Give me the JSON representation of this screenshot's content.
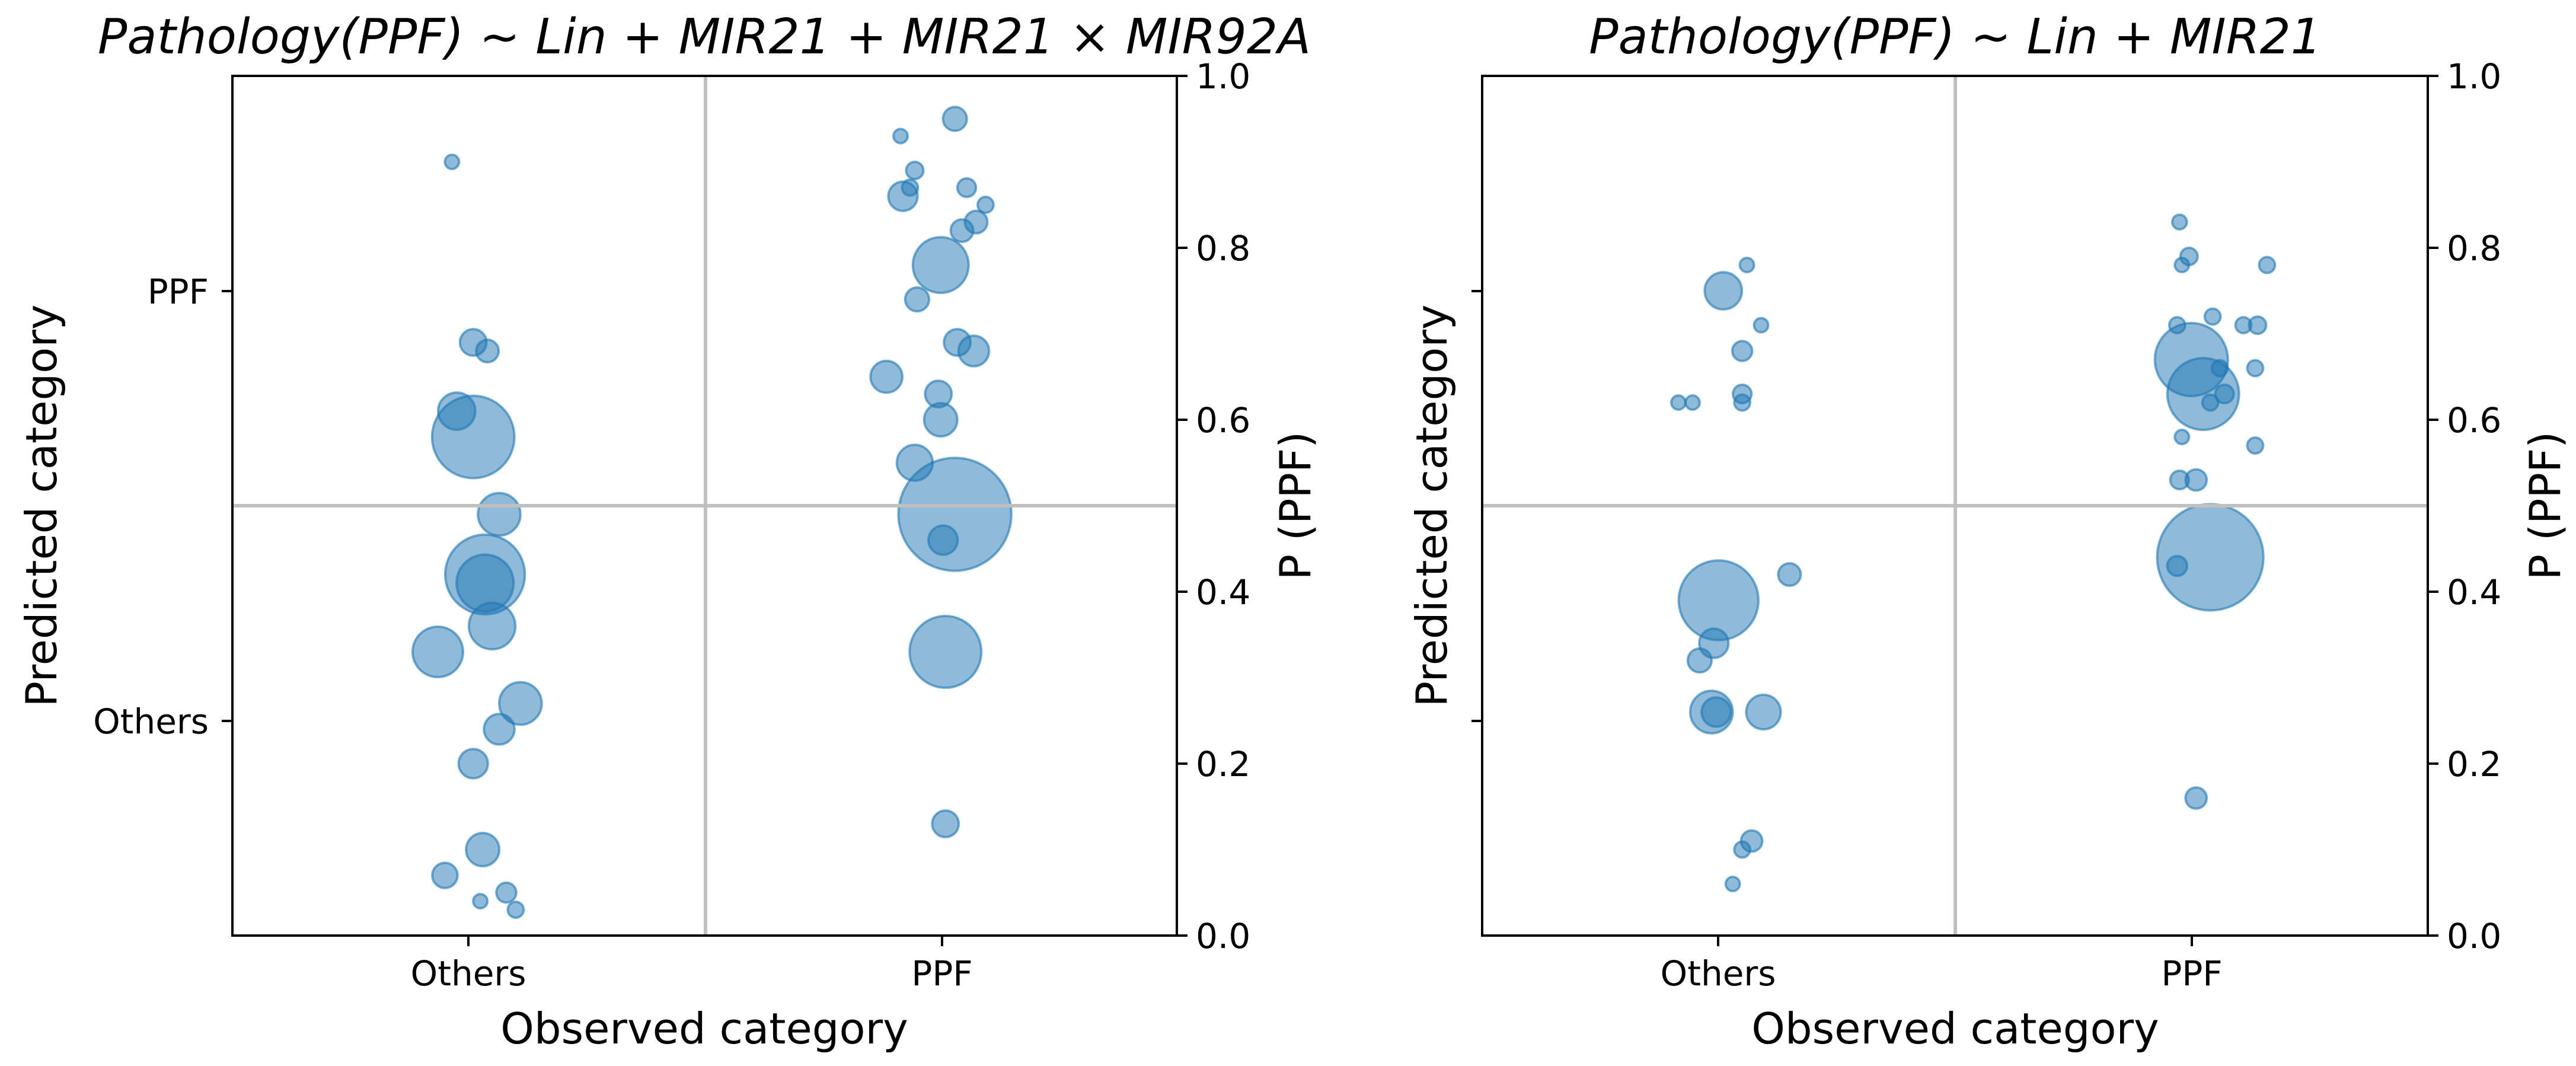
{
  "colors": {
    "bubble_fill": "#1f77b4",
    "bubble_edge": "#1f77b4",
    "reference_line": "#c0c0c0"
  },
  "chart_data": [
    {
      "type": "scatter",
      "title": "Pathology(PPF) ~ Lin + MIR21 + MIR21 × MIR92A",
      "xlabel": "Observed category",
      "ylabel_left": "Predicted category",
      "ylabel_right": "P (PPF)",
      "x_categories": [
        "Others",
        "PPF"
      ],
      "y_categories_left": [
        "Others",
        "PPF"
      ],
      "y_ticks_right": [
        "0.0",
        "0.2",
        "0.4",
        "0.6",
        "0.8",
        "1.0"
      ],
      "ylim": [
        0,
        1
      ],
      "threshold": 0.5,
      "points": [
        {
          "category": "Others",
          "jitter": -0.07,
          "p": 0.9,
          "size": 0.1
        },
        {
          "category": "Others",
          "jitter": 0.02,
          "p": 0.69,
          "size": 0.2
        },
        {
          "category": "Others",
          "jitter": 0.08,
          "p": 0.68,
          "size": 0.17
        },
        {
          "category": "Others",
          "jitter": -0.05,
          "p": 0.61,
          "size": 0.28
        },
        {
          "category": "Others",
          "jitter": 0.02,
          "p": 0.58,
          "size": 0.62
        },
        {
          "category": "Others",
          "jitter": 0.13,
          "p": 0.49,
          "size": 0.32
        },
        {
          "category": "Others",
          "jitter": 0.07,
          "p": 0.42,
          "size": 0.6
        },
        {
          "category": "Others",
          "jitter": 0.07,
          "p": 0.41,
          "size": 0.43
        },
        {
          "category": "Others",
          "jitter": 0.1,
          "p": 0.36,
          "size": 0.35
        },
        {
          "category": "Others",
          "jitter": -0.13,
          "p": 0.33,
          "size": 0.38
        },
        {
          "category": "Others",
          "jitter": 0.22,
          "p": 0.27,
          "size": 0.32
        },
        {
          "category": "Others",
          "jitter": 0.13,
          "p": 0.24,
          "size": 0.23
        },
        {
          "category": "Others",
          "jitter": 0.02,
          "p": 0.2,
          "size": 0.22
        },
        {
          "category": "Others",
          "jitter": 0.06,
          "p": 0.1,
          "size": 0.25
        },
        {
          "category": "Others",
          "jitter": -0.1,
          "p": 0.07,
          "size": 0.19
        },
        {
          "category": "Others",
          "jitter": 0.16,
          "p": 0.05,
          "size": 0.15
        },
        {
          "category": "Others",
          "jitter": 0.05,
          "p": 0.04,
          "size": 0.07
        },
        {
          "category": "Others",
          "jitter": 0.2,
          "p": 0.03,
          "size": 0.12
        },
        {
          "category": "PPF",
          "jitter": 0.06,
          "p": 0.95,
          "size": 0.18
        },
        {
          "category": "PPF",
          "jitter": -0.17,
          "p": 0.93,
          "size": 0.09
        },
        {
          "category": "PPF",
          "jitter": -0.11,
          "p": 0.89,
          "size": 0.13
        },
        {
          "category": "PPF",
          "jitter": -0.13,
          "p": 0.87,
          "size": 0.12
        },
        {
          "category": "PPF",
          "jitter": 0.11,
          "p": 0.87,
          "size": 0.14
        },
        {
          "category": "PPF",
          "jitter": -0.16,
          "p": 0.86,
          "size": 0.22
        },
        {
          "category": "PPF",
          "jitter": 0.19,
          "p": 0.85,
          "size": 0.12
        },
        {
          "category": "PPF",
          "jitter": 0.15,
          "p": 0.83,
          "size": 0.17
        },
        {
          "category": "PPF",
          "jitter": 0.09,
          "p": 0.82,
          "size": 0.17
        },
        {
          "category": "PPF",
          "jitter": 0.0,
          "p": 0.78,
          "size": 0.42
        },
        {
          "category": "PPF",
          "jitter": -0.1,
          "p": 0.74,
          "size": 0.18
        },
        {
          "category": "PPF",
          "jitter": 0.07,
          "p": 0.69,
          "size": 0.2
        },
        {
          "category": "PPF",
          "jitter": 0.14,
          "p": 0.68,
          "size": 0.23
        },
        {
          "category": "PPF",
          "jitter": -0.23,
          "p": 0.65,
          "size": 0.24
        },
        {
          "category": "PPF",
          "jitter": -0.01,
          "p": 0.63,
          "size": 0.2
        },
        {
          "category": "PPF",
          "jitter": 0.0,
          "p": 0.6,
          "size": 0.25
        },
        {
          "category": "PPF",
          "jitter": -0.11,
          "p": 0.55,
          "size": 0.27
        },
        {
          "category": "PPF",
          "jitter": 0.06,
          "p": 0.49,
          "size": 0.85
        },
        {
          "category": "PPF",
          "jitter": 0.01,
          "p": 0.46,
          "size": 0.22
        },
        {
          "category": "PPF",
          "jitter": 0.02,
          "p": 0.33,
          "size": 0.54
        },
        {
          "category": "PPF",
          "jitter": 0.02,
          "p": 0.13,
          "size": 0.2
        }
      ]
    },
    {
      "type": "scatter",
      "title": "Pathology(PPF) ~ Lin + MIR21",
      "xlabel": "Observed category",
      "ylabel_left": "Predicted category",
      "ylabel_right": "P (PPF)",
      "x_categories": [
        "Others",
        "PPF"
      ],
      "y_categories_left": [
        "",
        ""
      ],
      "y_ticks_right": [
        "0.0",
        "0.2",
        "0.4",
        "0.6",
        "0.8",
        "1.0"
      ],
      "ylim": [
        0,
        1
      ],
      "threshold": 0.5,
      "points": [
        {
          "category": "Others",
          "jitter": 0.12,
          "p": 0.78,
          "size": 0.1
        },
        {
          "category": "Others",
          "jitter": 0.02,
          "p": 0.75,
          "size": 0.28
        },
        {
          "category": "Others",
          "jitter": 0.18,
          "p": 0.71,
          "size": 0.1
        },
        {
          "category": "Others",
          "jitter": 0.1,
          "p": 0.68,
          "size": 0.15
        },
        {
          "category": "Others",
          "jitter": 0.1,
          "p": 0.63,
          "size": 0.14
        },
        {
          "category": "Others",
          "jitter": 0.1,
          "p": 0.62,
          "size": 0.12
        },
        {
          "category": "Others",
          "jitter": -0.17,
          "p": 0.62,
          "size": 0.1
        },
        {
          "category": "Others",
          "jitter": -0.11,
          "p": 0.62,
          "size": 0.1
        },
        {
          "category": "Others",
          "jitter": 0.0,
          "p": 0.39,
          "size": 0.6
        },
        {
          "category": "Others",
          "jitter": 0.3,
          "p": 0.42,
          "size": 0.17
        },
        {
          "category": "Others",
          "jitter": -0.02,
          "p": 0.34,
          "size": 0.22
        },
        {
          "category": "Others",
          "jitter": -0.08,
          "p": 0.32,
          "size": 0.18
        },
        {
          "category": "Others",
          "jitter": -0.03,
          "p": 0.26,
          "size": 0.32
        },
        {
          "category": "Others",
          "jitter": -0.01,
          "p": 0.26,
          "size": 0.22
        },
        {
          "category": "Others",
          "jitter": 0.19,
          "p": 0.26,
          "size": 0.26
        },
        {
          "category": "Others",
          "jitter": 0.14,
          "p": 0.11,
          "size": 0.16
        },
        {
          "category": "Others",
          "jitter": 0.1,
          "p": 0.1,
          "size": 0.12
        },
        {
          "category": "Others",
          "jitter": 0.06,
          "p": 0.06,
          "size": 0.09
        },
        {
          "category": "PPF",
          "jitter": -0.05,
          "p": 0.83,
          "size": 0.11
        },
        {
          "category": "PPF",
          "jitter": -0.01,
          "p": 0.79,
          "size": 0.13
        },
        {
          "category": "PPF",
          "jitter": 0.32,
          "p": 0.78,
          "size": 0.12
        },
        {
          "category": "PPF",
          "jitter": -0.04,
          "p": 0.78,
          "size": 0.1
        },
        {
          "category": "PPF",
          "jitter": 0.09,
          "p": 0.72,
          "size": 0.12
        },
        {
          "category": "PPF",
          "jitter": 0.28,
          "p": 0.71,
          "size": 0.13
        },
        {
          "category": "PPF",
          "jitter": 0.22,
          "p": 0.71,
          "size": 0.12
        },
        {
          "category": "PPF",
          "jitter": -0.06,
          "p": 0.71,
          "size": 0.12
        },
        {
          "category": "PPF",
          "jitter": 0.0,
          "p": 0.67,
          "size": 0.55
        },
        {
          "category": "PPF",
          "jitter": 0.12,
          "p": 0.66,
          "size": 0.12
        },
        {
          "category": "PPF",
          "jitter": 0.27,
          "p": 0.66,
          "size": 0.12
        },
        {
          "category": "PPF",
          "jitter": 0.05,
          "p": 0.63,
          "size": 0.54
        },
        {
          "category": "PPF",
          "jitter": 0.14,
          "p": 0.63,
          "size": 0.14
        },
        {
          "category": "PPF",
          "jitter": 0.08,
          "p": 0.62,
          "size": 0.12
        },
        {
          "category": "PPF",
          "jitter": -0.04,
          "p": 0.58,
          "size": 0.1
        },
        {
          "category": "PPF",
          "jitter": 0.27,
          "p": 0.57,
          "size": 0.12
        },
        {
          "category": "PPF",
          "jitter": 0.02,
          "p": 0.53,
          "size": 0.16
        },
        {
          "category": "PPF",
          "jitter": -0.05,
          "p": 0.53,
          "size": 0.14
        },
        {
          "category": "PPF",
          "jitter": 0.08,
          "p": 0.44,
          "size": 0.8
        },
        {
          "category": "PPF",
          "jitter": -0.06,
          "p": 0.43,
          "size": 0.15
        },
        {
          "category": "PPF",
          "jitter": 0.02,
          "p": 0.16,
          "size": 0.16
        }
      ]
    }
  ]
}
